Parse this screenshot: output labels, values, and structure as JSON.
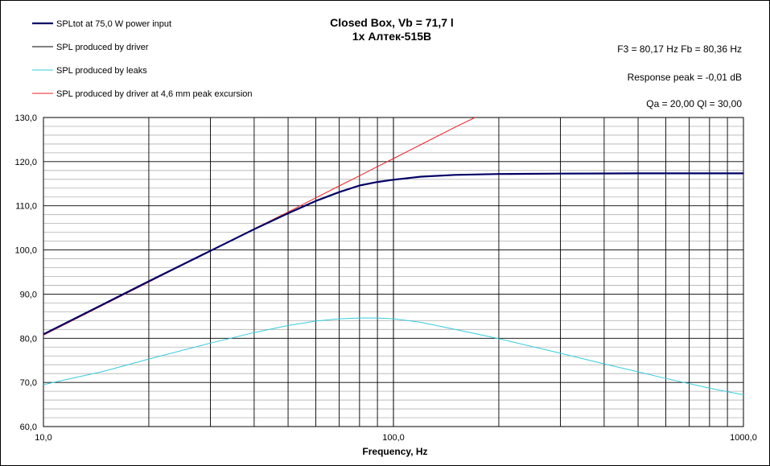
{
  "chart_data": {
    "type": "line",
    "title": "Closed Box, Vb = 71,7 l",
    "subtitle": "1x Алтек-515B",
    "xlabel": "Frequency,  Hz",
    "ylabel": "",
    "xscale": "log",
    "xlim": [
      10,
      1000
    ],
    "ylim": [
      60,
      130
    ],
    "grid": true,
    "legend_position": "top-left",
    "x_tick_labels": [
      "10,0",
      "100,0",
      "1000,0"
    ],
    "y_tick_labels": [
      "60,0",
      "70,0",
      "80,0",
      "90,0",
      "100,0",
      "110,0",
      "120,0",
      "130,0"
    ],
    "info": [
      "F3 = 80,17  Hz   Fb = 80,36  Hz",
      "Response peak = -0,01  dB",
      "Qa = 20,00   Ql = 30,00"
    ],
    "series": [
      {
        "name": "SPLtot at 75,0 W power input",
        "color": "#000066",
        "width": 2.2,
        "x": [
          10,
          15,
          20,
          30,
          40,
          50,
          60,
          70,
          80,
          90,
          100,
          120,
          150,
          200,
          300,
          500,
          700,
          1000
        ],
        "y": [
          80.9,
          87.9,
          92.9,
          99.8,
          104.7,
          108.3,
          111.1,
          113.1,
          114.6,
          115.4,
          115.9,
          116.6,
          117.0,
          117.2,
          117.3,
          117.35,
          117.35,
          117.35
        ]
      },
      {
        "name": "SPL produced by driver",
        "color": "#000000",
        "width": 1,
        "x": [
          10,
          15,
          20,
          30,
          40,
          50,
          60,
          70,
          80,
          90,
          100,
          120,
          150,
          200,
          300,
          500,
          700,
          1000
        ],
        "y": [
          80.9,
          87.9,
          92.9,
          99.8,
          104.7,
          108.3,
          111.1,
          113.1,
          114.6,
          115.4,
          115.9,
          116.6,
          117.0,
          117.2,
          117.3,
          117.35,
          117.35,
          117.35
        ]
      },
      {
        "name": "SPL produced by leaks",
        "color": "#33ccdd",
        "width": 1,
        "x": [
          10,
          15,
          20,
          30,
          40,
          50,
          60,
          70,
          80,
          90,
          100,
          120,
          150,
          200,
          300,
          400,
          500,
          600,
          800,
          1000
        ],
        "y": [
          69.5,
          72.6,
          75.3,
          78.9,
          81.3,
          82.9,
          83.9,
          84.4,
          84.6,
          84.6,
          84.4,
          83.6,
          82.0,
          79.9,
          76.6,
          74.2,
          72.4,
          70.9,
          68.7,
          67.2
        ]
      },
      {
        "name": "SPL produced by driver at 4,6 mm peak excursion",
        "color": "#ee2222",
        "width": 1,
        "x": [
          10,
          20,
          30,
          40,
          50,
          60,
          70,
          80,
          90,
          100,
          120,
          150,
          171
        ],
        "y": [
          80.7,
          92.7,
          99.8,
          104.8,
          108.6,
          111.8,
          114.5,
          116.8,
          118.9,
          120.7,
          123.9,
          127.8,
          130.0
        ]
      }
    ]
  }
}
